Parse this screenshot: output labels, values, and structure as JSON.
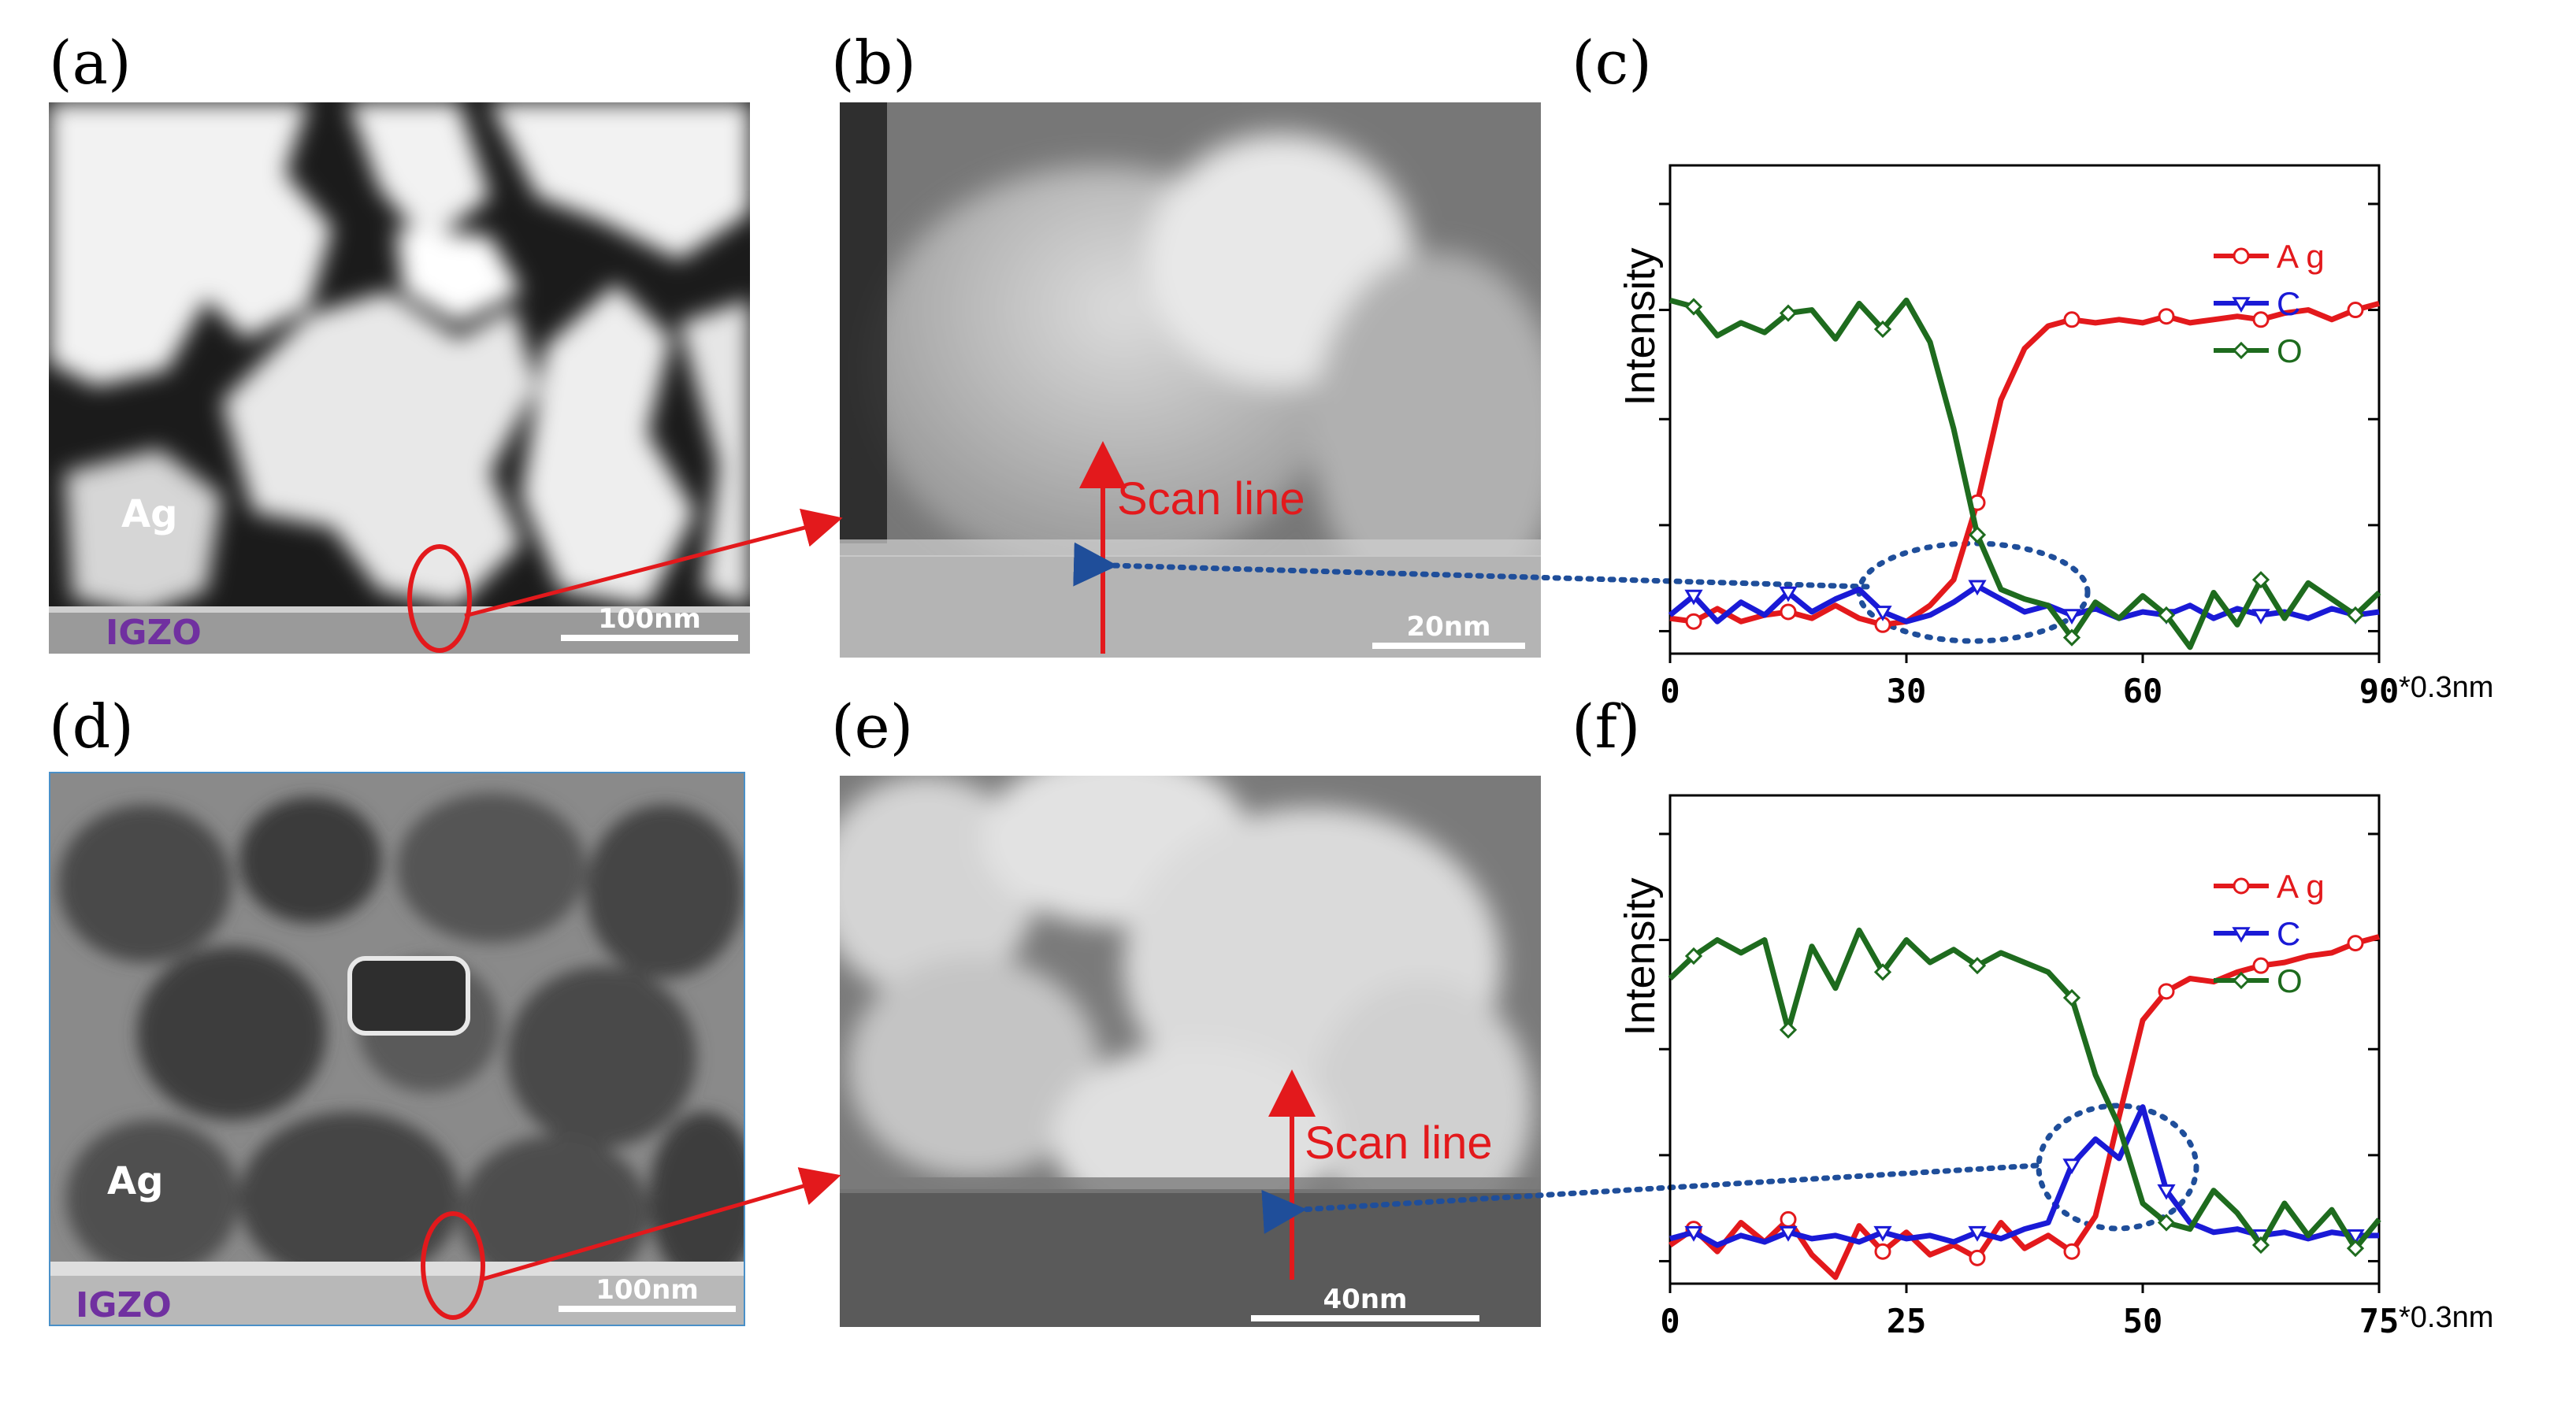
{
  "panel_labels": [
    "(a)",
    "(b)",
    "(c)",
    "(d)",
    "(e)",
    "(f)"
  ],
  "panel_a": {
    "material_top": "Ag",
    "material_bottom": "IGZO",
    "scale_bar": "100nm"
  },
  "panel_b": {
    "annotation": "Scan line",
    "scale_bar": "20nm"
  },
  "panel_d": {
    "material_top": "Ag",
    "material_bottom": "IGZO",
    "scale_bar": "100nm"
  },
  "panel_e": {
    "annotation": "Scan line",
    "scale_bar": "40nm"
  },
  "colors": {
    "ag": "#e3191c",
    "c": "#1a1ad6",
    "o": "#1e6b1e",
    "arrow_red": "#e3191c",
    "arrow_blue": "#1f4e9a"
  },
  "chart_data": [
    {
      "id": "c",
      "type": "line",
      "ylabel": "Intensity",
      "x_unit": "*0.3nm",
      "xlim": [
        0,
        90
      ],
      "ylim": [
        0,
        1
      ],
      "x_ticks": [
        "0",
        "30",
        "60",
        "90"
      ],
      "legend": [
        "A g",
        "C",
        "O"
      ],
      "series": [
        {
          "name": "A g",
          "color": "#e3191c",
          "marker": "circle",
          "x": [
            0,
            3,
            6,
            9,
            12,
            15,
            18,
            21,
            24,
            27,
            30,
            33,
            36,
            39,
            42,
            45,
            48,
            51,
            54,
            57,
            60,
            63,
            66,
            69,
            72,
            75,
            78,
            81,
            84,
            87,
            90
          ],
          "values": [
            0.04,
            0.03,
            0.07,
            0.03,
            0.05,
            0.06,
            0.04,
            0.08,
            0.04,
            0.02,
            0.03,
            0.08,
            0.16,
            0.4,
            0.72,
            0.88,
            0.95,
            0.97,
            0.96,
            0.97,
            0.96,
            0.98,
            0.96,
            0.97,
            0.98,
            0.97,
            0.99,
            1.0,
            0.97,
            1.0,
            1.02
          ]
        },
        {
          "name": "C",
          "color": "#1a1ad6",
          "marker": "triangle-down",
          "x": [
            0,
            3,
            6,
            9,
            12,
            15,
            18,
            21,
            24,
            27,
            30,
            33,
            36,
            39,
            42,
            45,
            48,
            51,
            54,
            57,
            60,
            63,
            66,
            69,
            72,
            75,
            78,
            81,
            84,
            87,
            90
          ],
          "values": [
            0.05,
            0.11,
            0.03,
            0.09,
            0.05,
            0.12,
            0.06,
            0.1,
            0.13,
            0.06,
            0.03,
            0.05,
            0.09,
            0.14,
            0.1,
            0.06,
            0.08,
            0.05,
            0.07,
            0.04,
            0.06,
            0.05,
            0.08,
            0.04,
            0.07,
            0.05,
            0.06,
            0.04,
            0.07,
            0.05,
            0.06
          ]
        },
        {
          "name": "O",
          "color": "#1e6b1e",
          "marker": "diamond",
          "x": [
            0,
            3,
            6,
            9,
            12,
            15,
            18,
            21,
            24,
            27,
            30,
            33,
            36,
            39,
            42,
            45,
            48,
            51,
            54,
            57,
            60,
            63,
            66,
            69,
            72,
            75,
            78,
            81,
            84,
            87,
            90
          ],
          "values": [
            1.03,
            1.01,
            0.92,
            0.96,
            0.93,
            0.99,
            1.0,
            0.91,
            1.02,
            0.94,
            1.03,
            0.9,
            0.63,
            0.3,
            0.13,
            0.1,
            0.08,
            -0.02,
            0.09,
            0.04,
            0.11,
            0.05,
            -0.05,
            0.12,
            0.02,
            0.16,
            0.04,
            0.15,
            0.1,
            0.05,
            0.12
          ]
        }
      ]
    },
    {
      "id": "f",
      "type": "line",
      "ylabel": "Intensity",
      "x_unit": "*0.3nm",
      "xlim": [
        0,
        75
      ],
      "ylim": [
        0,
        1
      ],
      "x_ticks": [
        "0",
        "25",
        "50",
        "75"
      ],
      "legend": [
        "A g",
        "C",
        "O"
      ],
      "series": [
        {
          "name": "A g",
          "color": "#e3191c",
          "marker": "circle",
          "x": [
            0,
            2.5,
            5,
            7.5,
            10,
            12.5,
            15,
            17.5,
            20,
            22.5,
            25,
            27.5,
            30,
            32.5,
            35,
            37.5,
            40,
            42.5,
            45,
            47.5,
            50,
            52.5,
            55,
            57.5,
            60,
            62.5,
            65,
            67.5,
            70,
            72.5,
            75
          ],
          "values": [
            0.05,
            0.1,
            0.03,
            0.12,
            0.06,
            0.13,
            0.02,
            -0.05,
            0.11,
            0.03,
            0.09,
            0.02,
            0.05,
            0.01,
            0.12,
            0.04,
            0.08,
            0.03,
            0.14,
            0.45,
            0.75,
            0.84,
            0.88,
            0.87,
            0.9,
            0.92,
            0.93,
            0.95,
            0.96,
            0.99,
            1.01
          ]
        },
        {
          "name": "C",
          "color": "#1a1ad6",
          "marker": "triangle-down",
          "x": [
            0,
            2.5,
            5,
            7.5,
            10,
            12.5,
            15,
            17.5,
            20,
            22.5,
            25,
            27.5,
            30,
            32.5,
            35,
            37.5,
            40,
            42.5,
            45,
            47.5,
            50,
            52.5,
            55,
            57.5,
            60,
            62.5,
            65,
            67.5,
            70,
            72.5,
            75
          ],
          "values": [
            0.07,
            0.09,
            0.05,
            0.08,
            0.06,
            0.09,
            0.07,
            0.08,
            0.06,
            0.09,
            0.07,
            0.08,
            0.06,
            0.09,
            0.07,
            0.1,
            0.12,
            0.3,
            0.38,
            0.32,
            0.48,
            0.22,
            0.12,
            0.09,
            0.1,
            0.08,
            0.09,
            0.07,
            0.09,
            0.08,
            0.08
          ]
        },
        {
          "name": "O",
          "color": "#1e6b1e",
          "marker": "diamond",
          "x": [
            0,
            2.5,
            5,
            7.5,
            10,
            12.5,
            15,
            17.5,
            20,
            22.5,
            25,
            27.5,
            30,
            32.5,
            35,
            37.5,
            40,
            42.5,
            45,
            47.5,
            50,
            52.5,
            55,
            57.5,
            60,
            62.5,
            65,
            67.5,
            70,
            72.5,
            75
          ],
          "values": [
            0.88,
            0.95,
            1.0,
            0.96,
            1.0,
            0.72,
            0.98,
            0.85,
            1.03,
            0.9,
            1.0,
            0.93,
            0.97,
            0.92,
            0.96,
            0.93,
            0.9,
            0.82,
            0.58,
            0.42,
            0.18,
            0.12,
            0.1,
            0.22,
            0.15,
            0.05,
            0.18,
            0.08,
            0.16,
            0.04,
            0.13
          ]
        }
      ]
    }
  ]
}
